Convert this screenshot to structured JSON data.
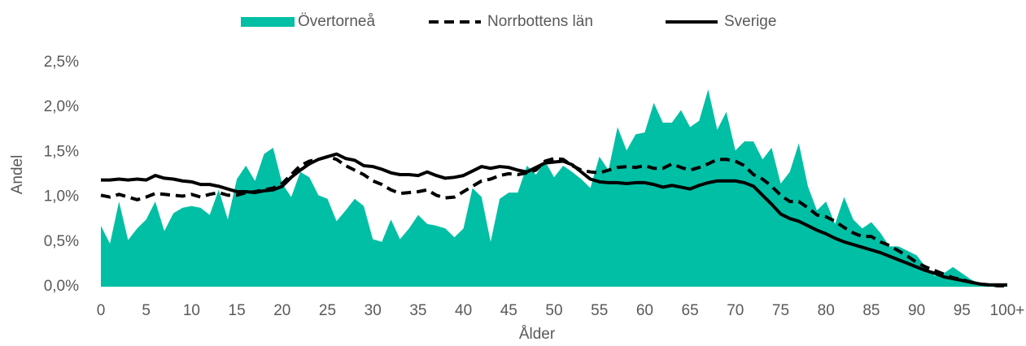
{
  "chart_data": {
    "type": "line",
    "y_label": "Andel",
    "x_label": "Ålder",
    "categories": [
      "0",
      null,
      null,
      null,
      null,
      "5",
      null,
      null,
      null,
      null,
      "10",
      null,
      null,
      null,
      null,
      "15",
      null,
      null,
      null,
      null,
      "20",
      null,
      null,
      null,
      null,
      "25",
      null,
      null,
      null,
      null,
      "30",
      null,
      null,
      null,
      null,
      "35",
      null,
      null,
      null,
      null,
      "40",
      null,
      null,
      null,
      null,
      "45",
      null,
      null,
      null,
      null,
      "50",
      null,
      null,
      null,
      null,
      "55",
      null,
      null,
      null,
      null,
      "60",
      null,
      null,
      null,
      null,
      "65",
      null,
      null,
      null,
      null,
      "70",
      null,
      null,
      null,
      null,
      "75",
      null,
      null,
      null,
      null,
      "80",
      null,
      null,
      null,
      null,
      "85",
      null,
      null,
      null,
      null,
      "90",
      null,
      null,
      null,
      null,
      "95",
      null,
      null,
      null,
      null,
      "100+"
    ],
    "ylim": [
      0,
      2.5
    ],
    "yticks": [
      {
        "value": 0,
        "label": "0,0%"
      },
      {
        "value": 0.5,
        "label": "0,5%"
      },
      {
        "value": 1,
        "label": "1,0%"
      },
      {
        "value": 1.5,
        "label": "1,5%"
      },
      {
        "value": 2,
        "label": "2,0%"
      },
      {
        "value": 2.5,
        "label": "2,5%"
      }
    ],
    "legend": "top",
    "series": [
      {
        "name": "Övertorneå",
        "type": "area",
        "color": "#00bfa5",
        "values": [
          0.68,
          0.48,
          0.95,
          0.52,
          0.65,
          0.75,
          0.95,
          0.62,
          0.82,
          0.88,
          0.9,
          0.88,
          0.8,
          1.08,
          0.75,
          1.2,
          1.35,
          1.18,
          1.48,
          1.55,
          1.15,
          1.0,
          1.28,
          1.22,
          1.02,
          0.98,
          0.73,
          0.85,
          0.98,
          0.9,
          0.53,
          0.5,
          0.75,
          0.53,
          0.65,
          0.8,
          0.7,
          0.68,
          0.65,
          0.55,
          0.65,
          1.1,
          1.0,
          0.5,
          0.98,
          1.05,
          1.05,
          1.35,
          1.25,
          1.4,
          1.22,
          1.35,
          1.28,
          1.2,
          1.1,
          1.45,
          1.3,
          1.78,
          1.52,
          1.7,
          1.72,
          2.05,
          1.83,
          1.83,
          1.97,
          1.78,
          1.85,
          2.2,
          1.75,
          1.95,
          1.52,
          1.62,
          1.62,
          1.42,
          1.55,
          1.15,
          1.28,
          1.6,
          1.12,
          0.85,
          0.95,
          0.7,
          1.0,
          0.75,
          0.65,
          0.72,
          0.6,
          0.45,
          0.45,
          0.4,
          0.35,
          0.22,
          0.12,
          0.15,
          0.22,
          0.15,
          0.08,
          0.03,
          0.02,
          0.01,
          0.01
        ]
      },
      {
        "name": "Norrbottens län",
        "type": "line",
        "line_style": "dashed",
        "color": "#000000",
        "values": [
          1.02,
          1.0,
          1.03,
          1.0,
          0.97,
          1.0,
          1.04,
          1.03,
          1.02,
          1.01,
          1.03,
          1.0,
          1.03,
          1.05,
          1.02,
          1.02,
          1.05,
          1.06,
          1.08,
          1.1,
          1.15,
          1.25,
          1.35,
          1.4,
          1.42,
          1.45,
          1.42,
          1.35,
          1.3,
          1.25,
          1.18,
          1.14,
          1.08,
          1.04,
          1.05,
          1.06,
          1.08,
          1.02,
          0.99,
          1.0,
          1.06,
          1.12,
          1.18,
          1.2,
          1.24,
          1.26,
          1.25,
          1.27,
          1.3,
          1.4,
          1.43,
          1.42,
          1.35,
          1.3,
          1.28,
          1.27,
          1.3,
          1.33,
          1.34,
          1.33,
          1.35,
          1.32,
          1.32,
          1.37,
          1.33,
          1.3,
          1.33,
          1.37,
          1.42,
          1.42,
          1.4,
          1.35,
          1.25,
          1.2,
          1.12,
          1.02,
          0.95,
          0.95,
          0.88,
          0.8,
          0.78,
          0.73,
          0.66,
          0.6,
          0.56,
          0.56,
          0.5,
          0.46,
          0.4,
          0.34,
          0.27,
          0.22,
          0.18,
          0.14,
          0.1,
          0.08,
          0.05,
          0.03,
          0.02,
          0.01,
          0.01
        ]
      },
      {
        "name": "Sverige",
        "type": "line",
        "line_style": "solid",
        "color": "#000000",
        "values": [
          1.19,
          1.19,
          1.2,
          1.19,
          1.2,
          1.19,
          1.24,
          1.21,
          1.2,
          1.18,
          1.17,
          1.14,
          1.14,
          1.12,
          1.09,
          1.06,
          1.06,
          1.05,
          1.07,
          1.08,
          1.12,
          1.22,
          1.3,
          1.37,
          1.42,
          1.45,
          1.48,
          1.43,
          1.41,
          1.35,
          1.34,
          1.31,
          1.27,
          1.25,
          1.25,
          1.24,
          1.28,
          1.24,
          1.21,
          1.22,
          1.24,
          1.29,
          1.34,
          1.32,
          1.34,
          1.33,
          1.3,
          1.28,
          1.33,
          1.38,
          1.39,
          1.4,
          1.36,
          1.28,
          1.2,
          1.17,
          1.16,
          1.16,
          1.15,
          1.16,
          1.16,
          1.14,
          1.11,
          1.13,
          1.11,
          1.09,
          1.13,
          1.16,
          1.18,
          1.18,
          1.18,
          1.16,
          1.12,
          1.02,
          0.92,
          0.81,
          0.76,
          0.73,
          0.68,
          0.63,
          0.59,
          0.54,
          0.5,
          0.47,
          0.44,
          0.41,
          0.38,
          0.34,
          0.3,
          0.26,
          0.22,
          0.18,
          0.15,
          0.11,
          0.09,
          0.07,
          0.05,
          0.03,
          0.02,
          0.02,
          0.02
        ]
      }
    ]
  }
}
